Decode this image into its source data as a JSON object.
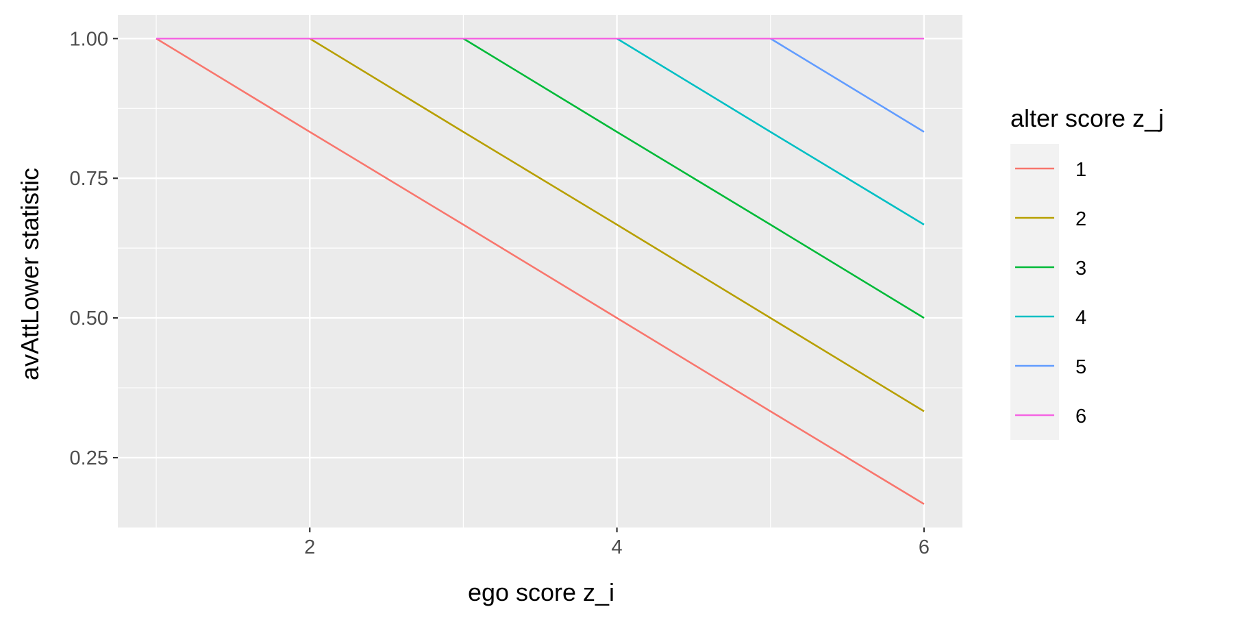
{
  "chart_data": {
    "type": "line",
    "title": "",
    "xlabel": "ego score z_i",
    "ylabel": "avAttLower statistic",
    "xlim": [
      0.75,
      6.25
    ],
    "ylim": [
      0.125,
      1.042
    ],
    "x_ticks": [
      2,
      4,
      6
    ],
    "x_tick_labels": [
      "2",
      "4",
      "6"
    ],
    "y_ticks": [
      0.25,
      0.5,
      0.75,
      1.0
    ],
    "y_tick_labels": [
      "0.25",
      "0.50",
      "0.75",
      "1.00"
    ],
    "grid": true,
    "legend": {
      "title": "alter score z_j",
      "position": "right"
    },
    "x": [
      1,
      2,
      3,
      4,
      5,
      6
    ],
    "series": [
      {
        "name": "1",
        "color": "#F8766D",
        "values": [
          1.0,
          0.833,
          0.667,
          0.5,
          0.333,
          0.167
        ]
      },
      {
        "name": "2",
        "color": "#B79F00",
        "values": [
          1.0,
          1.0,
          0.833,
          0.667,
          0.5,
          0.333
        ]
      },
      {
        "name": "3",
        "color": "#00BA38",
        "values": [
          1.0,
          1.0,
          1.0,
          0.833,
          0.667,
          0.5
        ]
      },
      {
        "name": "4",
        "color": "#00BFC4",
        "values": [
          1.0,
          1.0,
          1.0,
          1.0,
          0.833,
          0.667
        ]
      },
      {
        "name": "5",
        "color": "#619CFF",
        "values": [
          1.0,
          1.0,
          1.0,
          1.0,
          1.0,
          0.833
        ]
      },
      {
        "name": "6",
        "color": "#F564E3",
        "values": [
          1.0,
          1.0,
          1.0,
          1.0,
          1.0,
          1.0
        ]
      }
    ]
  },
  "colors": {
    "panel_background": "#EBEBEB",
    "grid_major": "#FFFFFF",
    "axis_text": "#4D4D4D",
    "legend_key_background": "#F2F2F2"
  }
}
